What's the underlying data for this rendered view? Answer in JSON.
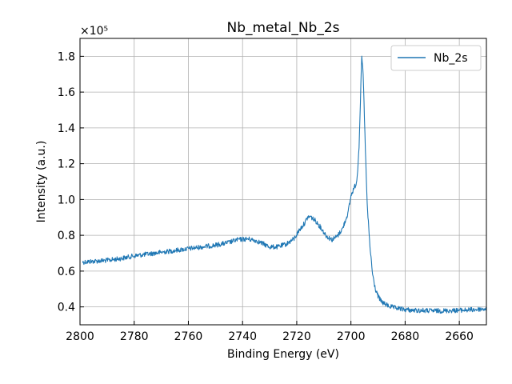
{
  "chart_data": {
    "type": "line",
    "title": "Nb_metal_Nb_2s",
    "xlabel": "Binding Energy (eV)",
    "ylabel": "Intensity (a.u.)",
    "y_multiplier_label": "×10⁵",
    "xlim": [
      2800,
      2650
    ],
    "ylim": [
      0.3,
      1.9
    ],
    "x_axis_reversed": true,
    "grid": true,
    "legend_position": "top-right",
    "x_ticks": [
      2800,
      2780,
      2760,
      2740,
      2720,
      2700,
      2680,
      2660
    ],
    "y_ticks": [
      0.4,
      0.6,
      0.8,
      1.0,
      1.2,
      1.4,
      1.6,
      1.8
    ],
    "x_tick_labels": [
      "2800",
      "2780",
      "2760",
      "2740",
      "2720",
      "2700",
      "2680",
      "2660"
    ],
    "y_tick_labels": [
      "0.4",
      "0.6",
      "0.8",
      "1.0",
      "1.2",
      "1.4",
      "1.6",
      "1.8"
    ],
    "series": [
      {
        "name": "Nb_2s",
        "color": "#1f77b4",
        "x": [
          2799,
          2795,
          2790,
          2785,
          2780,
          2775,
          2770,
          2765,
          2760,
          2755,
          2750,
          2745,
          2742,
          2738,
          2735,
          2732,
          2730,
          2727,
          2724,
          2721,
          2719,
          2717,
          2716,
          2715,
          2713,
          2711,
          2709,
          2707,
          2705,
          2703,
          2701,
          2700,
          2699,
          2698,
          2697.5,
          2697,
          2696.5,
          2696,
          2695.5,
          2695,
          2694.5,
          2694,
          2693,
          2692,
          2691,
          2690,
          2689,
          2688,
          2686,
          2684,
          2682,
          2680,
          2677,
          2674,
          2670,
          2666,
          2662,
          2658,
          2654,
          2650
        ],
        "values": [
          0.65,
          0.655,
          0.66,
          0.67,
          0.685,
          0.695,
          0.705,
          0.715,
          0.725,
          0.735,
          0.745,
          0.76,
          0.775,
          0.78,
          0.77,
          0.75,
          0.735,
          0.735,
          0.75,
          0.78,
          0.83,
          0.87,
          0.9,
          0.905,
          0.88,
          0.84,
          0.795,
          0.775,
          0.795,
          0.84,
          0.93,
          1.02,
          1.06,
          1.09,
          1.17,
          1.3,
          1.55,
          1.8,
          1.7,
          1.45,
          1.2,
          0.97,
          0.74,
          0.58,
          0.5,
          0.46,
          0.435,
          0.42,
          0.405,
          0.395,
          0.39,
          0.385,
          0.38,
          0.38,
          0.378,
          0.378,
          0.38,
          0.382,
          0.385,
          0.39
        ]
      }
    ]
  }
}
